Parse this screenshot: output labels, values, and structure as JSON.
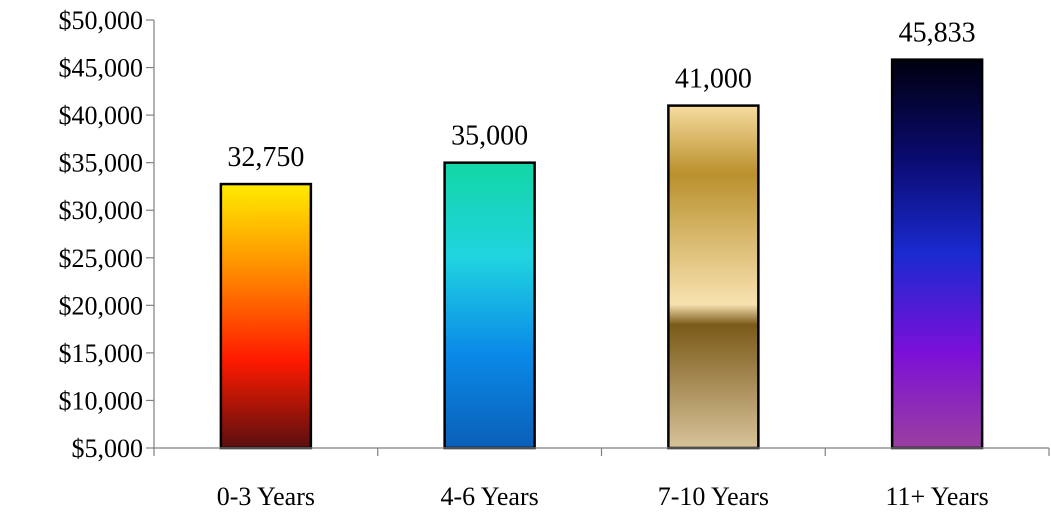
{
  "chart_data": {
    "type": "bar",
    "categories": [
      "0-3 Years",
      "4-6 Years",
      "7-10 Years",
      "11+ Years"
    ],
    "values": [
      32750,
      35000,
      41000,
      45833
    ],
    "data_labels": [
      "32,750",
      "35,000",
      "41,000",
      "45,833"
    ],
    "ylim": [
      5000,
      50000
    ],
    "yticks": [
      5000,
      10000,
      15000,
      20000,
      25000,
      30000,
      35000,
      40000,
      45000,
      50000
    ],
    "ytick_labels": [
      "$5,000",
      "$10,000",
      "$15,000",
      "$20,000",
      "$25,000",
      "$30,000",
      "$35,000",
      "$40,000",
      "$45,000",
      "$50,000"
    ],
    "grid": false,
    "legend": "none",
    "bar_gradients": [
      [
        "#ffec00",
        "#ff8a00",
        "#ff1a00",
        "#5a0f0f"
      ],
      [
        "#12d6a6",
        "#20d4e0",
        "#0a8ae8",
        "#0a5fb8"
      ],
      [
        "#f6dca0",
        "#b9902c",
        "#f7e2b0",
        "#7a5a18",
        "#d8c39a"
      ],
      [
        "#000010",
        "#0a0a6e",
        "#1a2ad0",
        "#7a10d8",
        "#9a40a0"
      ]
    ]
  }
}
